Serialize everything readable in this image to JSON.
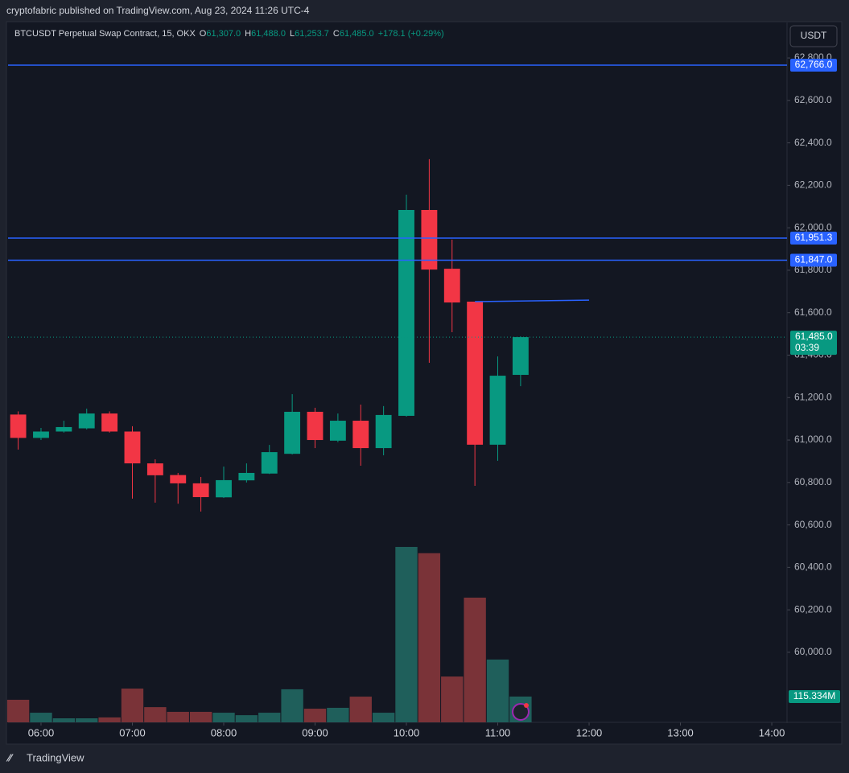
{
  "header": {
    "publisher": "cryptofabric published on TradingView.com, Aug 23, 2024 11:26 UTC-4",
    "currency": "USDT",
    "brand": "TradingView"
  },
  "chart_data": {
    "type": "candlestick",
    "title": "BTCUSDT Perpetual Swap Contract, 15, OKX",
    "legend": {
      "o": "O",
      "open": "61,307.0",
      "h": "H",
      "high": "61,488.0",
      "l": "L",
      "low": "61,253.7",
      "c": "C",
      "close": "61,485.0",
      "change": "+178.1 (+0.29%)"
    },
    "x": [
      5.75,
      6,
      6.25,
      6.5,
      6.75,
      7,
      7.25,
      7.5,
      7.75,
      8,
      8.25,
      8.5,
      8.75,
      9,
      9.25,
      9.5,
      9.75,
      10,
      10.25,
      10.5,
      10.75,
      11,
      11.25
    ],
    "open": [
      61120,
      61010,
      61040,
      61055,
      61125,
      61040,
      60890,
      60835,
      60796,
      60730,
      60810,
      60842,
      60935,
      61133,
      60997,
      61091,
      60962,
      61114,
      62084,
      61807,
      61652,
      60978,
      61307
    ],
    "high": [
      61135,
      61057,
      61091,
      61148,
      61135,
      61065,
      60909,
      60845,
      60826,
      60875,
      60890,
      60977,
      61216,
      61152,
      61125,
      61167,
      61160,
      62156,
      62323,
      61944,
      61652,
      61394,
      61488
    ],
    "low": [
      60955,
      61000,
      61035,
      61050,
      61035,
      60724,
      60705,
      60700,
      60663,
      60727,
      60800,
      60840,
      60932,
      60962,
      60990,
      60879,
      60928,
      61110,
      61364,
      61508,
      60784,
      60902,
      61253.7
    ],
    "close": [
      61010,
      61040,
      61061,
      61125,
      61040,
      60890,
      60834,
      60796,
      60731,
      60811,
      60845,
      60943,
      61133,
      61000,
      61091,
      60962,
      61118,
      62084,
      61803,
      61648,
      60978,
      61303,
      61485
    ],
    "up_color": "#089981",
    "down_color": "#f23645",
    "volume": {
      "values": [
        101,
        43,
        18,
        18,
        22,
        151,
        68,
        47,
        47,
        43,
        32,
        43,
        148,
        61,
        65,
        115,
        43,
        785,
        757,
        205,
        558,
        281,
        115.334
      ],
      "value_labels": [
        null,
        null,
        null,
        null,
        null,
        null,
        null,
        null,
        null,
        null,
        null,
        null,
        null,
        null,
        null,
        null,
        null,
        null,
        null,
        null,
        null,
        null,
        "115.334M"
      ],
      "lim": [
        0,
        3132
      ],
      "up_color": "#1f5f5b",
      "down_color": "#7a3338"
    },
    "xlim": [
      5.639,
      14.167
    ],
    "xticks": [
      {
        "value": 6,
        "label": "06:00"
      },
      {
        "value": 7,
        "label": "07:00"
      },
      {
        "value": 8,
        "label": "08:00"
      },
      {
        "value": 9,
        "label": "09:00"
      },
      {
        "value": 10,
        "label": "10:00"
      },
      {
        "value": 11,
        "label": "11:00"
      },
      {
        "value": 12,
        "label": "12:00"
      },
      {
        "value": 13,
        "label": "13:00"
      },
      {
        "value": 14,
        "label": "14:00"
      }
    ],
    "ylim": [
      59670,
      62967
    ],
    "yticks": [
      {
        "value": 60000,
        "label": "60,000.0"
      },
      {
        "value": 60200,
        "label": "60,200.0"
      },
      {
        "value": 60400,
        "label": "60,400.0"
      },
      {
        "value": 60600,
        "label": "60,600.0"
      },
      {
        "value": 60800,
        "label": "60,800.0"
      },
      {
        "value": 61000,
        "label": "61,000.0"
      },
      {
        "value": 61200,
        "label": "61,200.0"
      },
      {
        "value": 61400,
        "label": "61,400.0"
      },
      {
        "value": 61600,
        "label": "61,600.0"
      },
      {
        "value": 61800,
        "label": "61,800.0"
      },
      {
        "value": 62000,
        "label": "62,000.0"
      },
      {
        "value": 62200,
        "label": "62,200.0"
      },
      {
        "value": 62400,
        "label": "62,400.0"
      },
      {
        "value": 62600,
        "label": "62,600.0"
      },
      {
        "value": 62800,
        "label": "62,800.0"
      }
    ],
    "price_lines": [
      {
        "value": 62766,
        "label": "62,766.0"
      },
      {
        "value": 61951.3,
        "label": "61,951.3"
      },
      {
        "value": 61847,
        "label": "61,847.0"
      }
    ],
    "line_color": "#2962ff",
    "trend_line": {
      "x": [
        10.75,
        12
      ],
      "y": [
        61652,
        61659
      ]
    },
    "last_price": {
      "value": 61485,
      "label": "61,485.0",
      "countdown": "03:39"
    }
  }
}
